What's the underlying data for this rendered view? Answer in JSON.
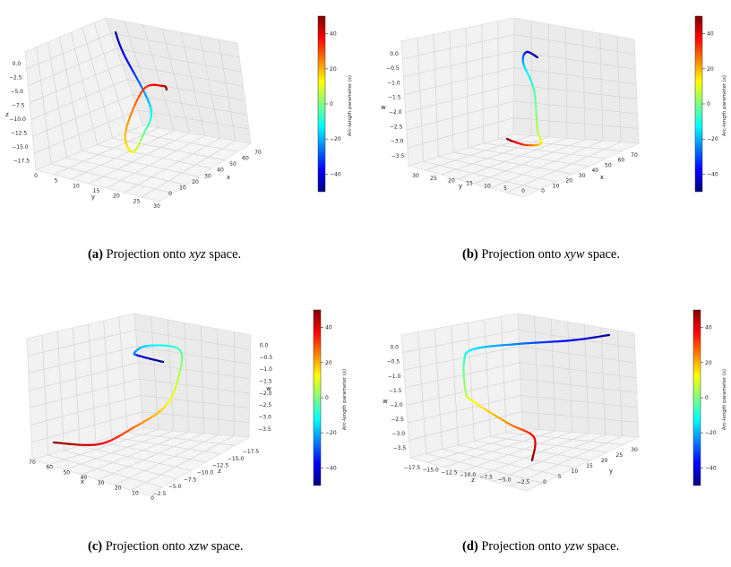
{
  "figure": {
    "colorbar": {
      "label": "Arc-length parameter (s)",
      "ticks": [
        "40",
        "20",
        "0",
        "−20",
        "−40"
      ],
      "range": [
        -50,
        50
      ],
      "colors": [
        "#00007f",
        "#0000ff",
        "#007fff",
        "#00ffff",
        "#7fff7f",
        "#ffff00",
        "#ff7f00",
        "#ff0000",
        "#7f0000"
      ]
    },
    "panels": [
      {
        "id": "a",
        "caption": {
          "tag": "(a)",
          "text": "Projection onto",
          "vars": "xyz",
          "suffix": "space."
        },
        "axes": {
          "vertical": {
            "label": "z",
            "ticks": [
              "0.0",
              "−2.5",
              "−5.0",
              "−7.5",
              "−10.0",
              "−12.5",
              "−15.0",
              "−17.5"
            ]
          },
          "left": {
            "label": "y",
            "ticks": [
              "0",
              "5",
              "10",
              "15",
              "20",
              "25",
              "30"
            ]
          },
          "right": {
            "label": "x",
            "ticks": [
              "0",
              "10",
              "20",
              "30",
              "40",
              "50",
              "60",
              "70"
            ]
          }
        }
      },
      {
        "id": "b",
        "caption": {
          "tag": "(b)",
          "text": "Projection onto",
          "vars": "xyw",
          "suffix": "space."
        },
        "axes": {
          "vertical": {
            "label": "w",
            "ticks": [
              "0.0",
              "−0.5",
              "−1.0",
              "−1.5",
              "−2.0",
              "−2.5",
              "−3.0",
              "−3.5"
            ]
          },
          "left": {
            "label": "y",
            "ticks": [
              "30",
              "25",
              "20",
              "15",
              "10",
              "5",
              "0"
            ]
          },
          "right": {
            "label": "x",
            "ticks": [
              "0",
              "10",
              "20",
              "30",
              "40",
              "50",
              "60",
              "70"
            ]
          }
        }
      },
      {
        "id": "c",
        "caption": {
          "tag": "(c)",
          "text": "Projection onto",
          "vars": "xzw",
          "suffix": "space."
        },
        "axes": {
          "vertical": {
            "label": "w",
            "ticks": [
              "0.0",
              "−0.5",
              "−1.0",
              "−1.5",
              "−2.0",
              "−2.5",
              "−3.0",
              "−3.5"
            ]
          },
          "left": {
            "label": "x",
            "ticks": [
              "70",
              "60",
              "50",
              "40",
              "30",
              "20",
              "10",
              "0"
            ]
          },
          "right": {
            "label": "z",
            "ticks": [
              "−2.5",
              "−5.0",
              "−7.5",
              "−10.0",
              "−12.5",
              "−15.0",
              "−17.5"
            ]
          }
        }
      },
      {
        "id": "d",
        "caption": {
          "tag": "(d)",
          "text": "Projection onto",
          "vars": "yzw",
          "suffix": "space."
        },
        "axes": {
          "vertical": {
            "label": "w",
            "ticks": [
              "0.0",
              "−0.5",
              "−1.0",
              "−1.5",
              "−2.0",
              "−2.5",
              "−3.0",
              "−3.5"
            ]
          },
          "left": {
            "label": "z",
            "ticks": [
              "−17.5",
              "−15.0",
              "−12.5",
              "−10.0",
              "−7.5",
              "−5.0",
              "−2.5"
            ]
          },
          "right": {
            "label": "y",
            "ticks": [
              "0",
              "5",
              "10",
              "15",
              "20",
              "25",
              "30"
            ]
          }
        }
      }
    ]
  }
}
